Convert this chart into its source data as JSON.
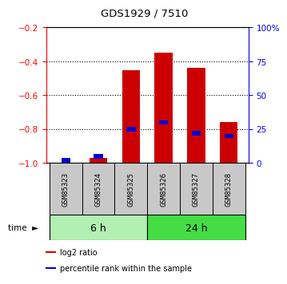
{
  "title": "GDS1929 / 7510",
  "samples": [
    "GSM85323",
    "GSM85324",
    "GSM85325",
    "GSM85326",
    "GSM85327",
    "GSM85328"
  ],
  "log2_ratio": [
    -1.0,
    -0.97,
    -0.45,
    -0.35,
    -0.44,
    -0.76
  ],
  "percentile_rank": [
    2,
    5,
    25,
    30,
    22,
    20
  ],
  "left_ylim": [
    -1.0,
    -0.2
  ],
  "right_ylim": [
    0,
    100
  ],
  "left_yticks": [
    -1.0,
    -0.8,
    -0.6,
    -0.4,
    -0.2
  ],
  "right_yticks": [
    0,
    25,
    50,
    75,
    100
  ],
  "right_yticklabels": [
    "0",
    "25",
    "50",
    "75",
    "100%"
  ],
  "groups": [
    {
      "label": "6 h",
      "indices": [
        0,
        1,
        2
      ],
      "color": "#b2f0b2"
    },
    {
      "label": "24 h",
      "indices": [
        3,
        4,
        5
      ],
      "color": "#44dd44"
    }
  ],
  "bar_color": "#CC0000",
  "percentile_color": "#0000CC",
  "bg_label": "#C8C8C8",
  "time_label": "time",
  "legend_items": [
    {
      "label": "log2 ratio",
      "color": "#CC0000"
    },
    {
      "label": "percentile rank within the sample",
      "color": "#0000CC"
    }
  ]
}
